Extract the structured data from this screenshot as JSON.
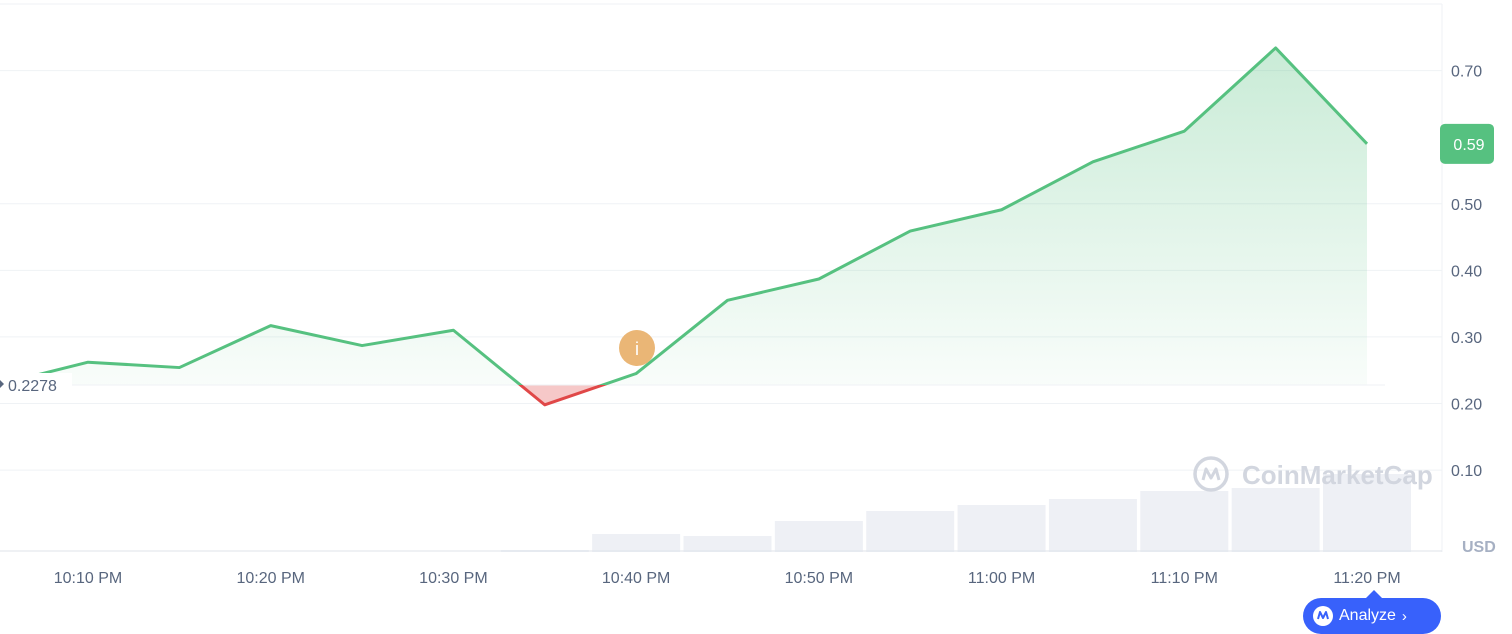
{
  "chart_data": {
    "type": "line",
    "x": [
      "10:05 PM",
      "10:10 PM",
      "10:15 PM",
      "10:20 PM",
      "10:25 PM",
      "10:30 PM",
      "10:35 PM",
      "10:40 PM",
      "10:45 PM",
      "10:50 PM",
      "10:55 PM",
      "11:00 PM",
      "11:05 PM",
      "11:10 PM",
      "11:15 PM",
      "11:20 PM"
    ],
    "y": [
      0.2278,
      0.262,
      0.254,
      0.317,
      0.287,
      0.31,
      0.198,
      0.245,
      0.355,
      0.387,
      0.459,
      0.491,
      0.563,
      0.609,
      0.734,
      0.59
    ],
    "baseline": 0.2278,
    "baseline_label": "0.2278",
    "x_ticks": [
      "10:10 PM",
      "10:20 PM",
      "10:30 PM",
      "10:40 PM",
      "10:50 PM",
      "11:00 PM",
      "11:10 PM",
      "11:20 PM"
    ],
    "y_ticks": [
      0.1,
      0.2,
      0.3,
      0.4,
      0.5,
      0.7
    ],
    "y_tick_labels": [
      "0.10",
      "0.20",
      "0.30",
      "0.40",
      "0.50",
      "0.70"
    ],
    "ylim": [
      -0.023,
      0.8
    ],
    "current_price_label": "0.59",
    "currency_label": "USD",
    "grid": true,
    "volume": {
      "x": [
        "10:35 PM",
        "10:40 PM",
        "10:45 PM",
        "10:50 PM",
        "10:55 PM",
        "11:00 PM",
        "11:05 PM",
        "11:10 PM",
        "11:15 PM",
        "11:20 PM"
      ],
      "values": [
        2,
        18,
        16,
        31,
        41,
        47,
        53,
        61,
        64,
        78
      ]
    },
    "colors": {
      "up": "#56c180",
      "down": "#e04848",
      "volume": "#eef0f5",
      "grid": "#eff2f5",
      "badge": "#56c180"
    }
  },
  "event_marker": {
    "icon": "info-icon",
    "glyph": "i",
    "color": "#eab676"
  },
  "watermark": {
    "text": "CoinMarketCap"
  },
  "analyze_button": {
    "label": "Analyze",
    "chevron": "›",
    "icon": "cmc-logo-icon"
  }
}
